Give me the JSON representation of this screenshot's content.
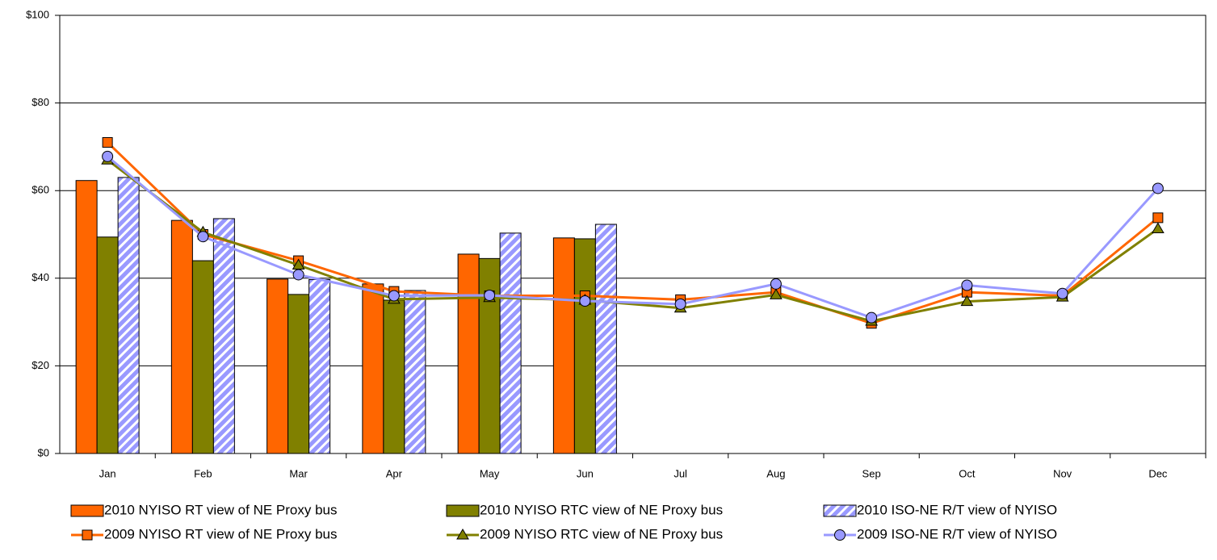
{
  "chart_data": {
    "type": "bar",
    "categories": [
      "Jan",
      "Feb",
      "Mar",
      "Apr",
      "May",
      "Jun",
      "Jul",
      "Aug",
      "Sep",
      "Oct",
      "Nov",
      "Dec"
    ],
    "ylim": [
      0,
      100
    ],
    "yticks": [
      {
        "value": 0,
        "label": "$0"
      },
      {
        "value": 20,
        "label": "$20"
      },
      {
        "value": 40,
        "label": "$40"
      },
      {
        "value": 60,
        "label": "$60"
      },
      {
        "value": 80,
        "label": "$80"
      },
      {
        "value": 100,
        "label": "$100"
      }
    ],
    "grid": true,
    "legend": "bottom",
    "series": [
      {
        "name": "2010 NYISO RT view of NE Proxy bus",
        "type": "bar",
        "color": "#ff6600",
        "values": [
          62.3,
          53.2,
          39.8,
          38.7,
          45.5,
          49.2,
          null,
          null,
          null,
          null,
          null,
          null
        ]
      },
      {
        "name": "2010 NYISO RTC view of NE Proxy bus",
        "type": "bar",
        "color": "#808000",
        "values": [
          49.4,
          44.0,
          36.3,
          35.0,
          44.5,
          49.0,
          null,
          null,
          null,
          null,
          null,
          null
        ]
      },
      {
        "name": "2010 ISO-NE R/T view of NYISO",
        "type": "bar",
        "color": "#9999ff",
        "hatch": true,
        "values": [
          63.0,
          53.6,
          39.7,
          37.2,
          50.3,
          52.3,
          null,
          null,
          null,
          null,
          null,
          null
        ]
      },
      {
        "name": "2009 NYISO RT view of NE Proxy bus",
        "type": "line",
        "marker": "square",
        "color": "#ff6600",
        "values": [
          71.0,
          50.0,
          44.0,
          37.0,
          36.0,
          36.0,
          35.1,
          36.8,
          29.7,
          36.8,
          36.0,
          53.8
        ]
      },
      {
        "name": "2009 NYISO RTC view of NE Proxy bus",
        "type": "line",
        "marker": "triangle",
        "color": "#808000",
        "values": [
          67.0,
          50.5,
          43.0,
          35.2,
          35.6,
          35.0,
          33.2,
          36.2,
          30.2,
          34.7,
          35.7,
          51.3
        ]
      },
      {
        "name": "2009 ISO-NE R/T view of NYISO",
        "type": "line",
        "marker": "circle",
        "color": "#9999ff",
        "values": [
          67.8,
          49.5,
          40.8,
          36.0,
          36.1,
          34.8,
          34.1,
          38.7,
          31.0,
          38.4,
          36.5,
          60.5
        ]
      }
    ]
  }
}
